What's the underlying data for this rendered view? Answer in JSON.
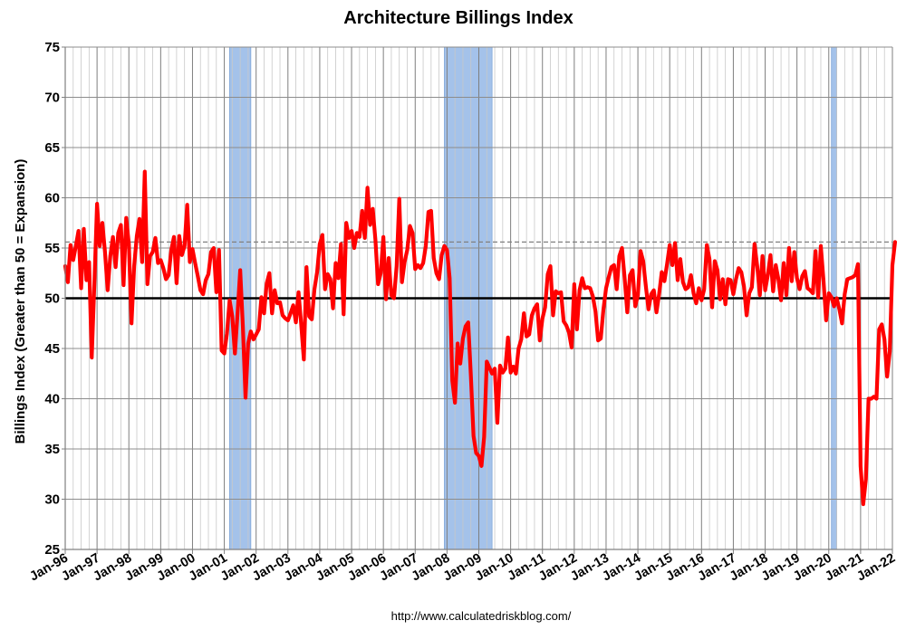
{
  "chart_data": {
    "type": "line",
    "title": "Architecture Billings Index",
    "ylabel": "Billings Index (Greater than 50 = Expansion)",
    "xlabel": "",
    "source": "http://www.calculatedriskblog.com/",
    "ylim": [
      25,
      75
    ],
    "yticks": [
      25,
      30,
      35,
      40,
      45,
      50,
      55,
      60,
      65,
      70,
      75
    ],
    "xlim": [
      "1996-01",
      "2022-01"
    ],
    "xticks": [
      "Jan-96",
      "Jan-97",
      "Jan-98",
      "Jan-99",
      "Jan-00",
      "Jan-01",
      "Jan-02",
      "Jan-03",
      "Jan-04",
      "Jan-05",
      "Jan-06",
      "Jan-07",
      "Jan-08",
      "Jan-09",
      "Jan-10",
      "Jan-11",
      "Jan-12",
      "Jan-13",
      "Jan-14",
      "Jan-15",
      "Jan-16",
      "Jan-17",
      "Jan-18",
      "Jan-19",
      "Jan-20",
      "Jan-21",
      "Jan-22"
    ],
    "grid": true,
    "reference_lines": [
      {
        "y": 50,
        "style": "solid",
        "color": "#000000"
      },
      {
        "y": 55.6,
        "style": "dashed",
        "color": "#808080"
      }
    ],
    "recessions": [
      {
        "start": "2001-03",
        "end": "2001-11"
      },
      {
        "start": "2007-12",
        "end": "2009-06"
      },
      {
        "start": "2020-02",
        "end": "2020-04"
      }
    ],
    "series": [
      {
        "color": "#ff0000",
        "start": "1996-01",
        "values": [
          53.2,
          51.6,
          55.3,
          53.8,
          55.2,
          56.7,
          51.0,
          56.9,
          51.8,
          53.6,
          44.1,
          51.5,
          59.4,
          55.2,
          57.5,
          54.6,
          50.8,
          54.2,
          56.1,
          53.1,
          56.5,
          57.3,
          51.3,
          58.0,
          55.4,
          47.5,
          53.2,
          56.2,
          57.9,
          53.6,
          62.6,
          51.4,
          54.2,
          54.6,
          56.0,
          53.5,
          53.8,
          53.0,
          51.9,
          52.3,
          54.8,
          56.1,
          51.5,
          56.2,
          54.3,
          55.2,
          59.3,
          53.6,
          54.9,
          53.5,
          52.2,
          50.8,
          50.4,
          51.8,
          52.4,
          54.6,
          55.0,
          50.6,
          54.8,
          44.8,
          44.5,
          46.5,
          49.8,
          48.2,
          44.5,
          48.5,
          52.8,
          47.2,
          40.1,
          45.5,
          46.7,
          45.9,
          46.4,
          46.9,
          50.1,
          48.5,
          51.5,
          52.5,
          48.5,
          50.8,
          49.5,
          49.6,
          48.3,
          48.0,
          47.8,
          48.5,
          49.3,
          47.6,
          50.6,
          47.4,
          43.9,
          53.1,
          48.2,
          47.9,
          50.9,
          52.6,
          55.4,
          56.3,
          50.9,
          52.4,
          51.9,
          49.0,
          53.5,
          52.0,
          55.4,
          48.4,
          57.5,
          56.0,
          56.7,
          55.0,
          56.5,
          56.1,
          58.7,
          56.0,
          61.0,
          57.3,
          58.9,
          55.8,
          51.4,
          52.5,
          56.1,
          49.9,
          54.0,
          50.3,
          50.0,
          53.2,
          59.9,
          51.6,
          53.6,
          54.8,
          57.2,
          56.5,
          52.9,
          53.3,
          53.0,
          53.5,
          55.2,
          58.6,
          58.7,
          54.0,
          52.5,
          51.9,
          54.3,
          55.2,
          54.8,
          52.0,
          41.8,
          39.6,
          45.5,
          43.5,
          46.0,
          47.2,
          47.6,
          42.3,
          36.3,
          34.6,
          34.3,
          33.3,
          36.2,
          43.7,
          43.1,
          42.5,
          43.0,
          37.6,
          43.3,
          42.6,
          43.0,
          46.1,
          42.6,
          43.2,
          42.5,
          45.0,
          45.9,
          48.5,
          46.2,
          46.4,
          48.3,
          49.0,
          49.4,
          45.8,
          48.0,
          49.1,
          52.4,
          53.2,
          48.3,
          50.7,
          50.5,
          50.6,
          47.7,
          47.3,
          46.6,
          45.1,
          51.4,
          46.9,
          50.8,
          52.0,
          51.0,
          51.1,
          51.0,
          50.2,
          48.7,
          45.8,
          46.0,
          48.9,
          51.0,
          52.1,
          53.1,
          53.3,
          50.9,
          54.2,
          55.0,
          52.0,
          48.6,
          52.3,
          52.8,
          49.2,
          50.3,
          54.7,
          53.7,
          51.2,
          48.9,
          50.4,
          50.8,
          48.6,
          50.4,
          52.6,
          51.7,
          53.4,
          55.3,
          53.3,
          55.5,
          51.8,
          53.9,
          51.6,
          50.9,
          51.1,
          52.3,
          50.5,
          49.5,
          51.0,
          49.8,
          50.9,
          55.3,
          53.9,
          49.1,
          53.7,
          52.8,
          49.9,
          51.9,
          49.4,
          51.9,
          51.8,
          50.4,
          51.9,
          53.0,
          52.6,
          51.2,
          48.3,
          50.5,
          51.1,
          55.4,
          53.2,
          50.3,
          54.2,
          50.8,
          52.3,
          54.3,
          50.7,
          53.3,
          51.9,
          49.8,
          53.5,
          50.3,
          55.0,
          51.7,
          54.6,
          52.0,
          50.9,
          52.2,
          52.7,
          51.0,
          50.8,
          50.5,
          54.7,
          50.1,
          55.2,
          51.8,
          47.8,
          50.5,
          50.1,
          49.2,
          50.0,
          48.9,
          47.5,
          50.4,
          51.9,
          52.0,
          52.1,
          52.3,
          53.4,
          33.3,
          29.5,
          32.0,
          40.0,
          40.0,
          40.2,
          40.0,
          46.9,
          47.4,
          45.9,
          42.2,
          44.7,
          53.3,
          55.6
        ]
      }
    ]
  }
}
